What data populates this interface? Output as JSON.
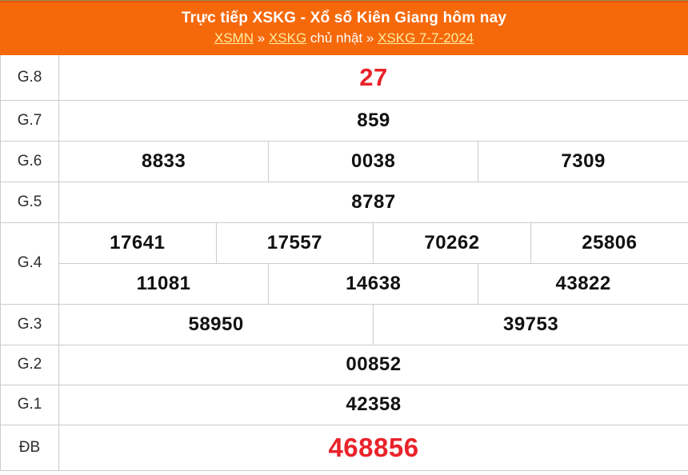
{
  "header": {
    "title": "Trực tiếp XSKG - Xổ số Kiên Giang hôm nay",
    "breadcrumb": {
      "link1": "XSMN",
      "sep1": "»",
      "link2": "XSKG",
      "text1": "chủ nhật",
      "sep2": "»",
      "link3": "XSKG 7-7-2024"
    }
  },
  "table": {
    "rows": [
      {
        "label": "G.8",
        "cells": [
          "27"
        ]
      },
      {
        "label": "G.7",
        "cells": [
          "859"
        ]
      },
      {
        "label": "G.6",
        "cells": [
          "8833",
          "0038",
          "7309"
        ]
      },
      {
        "label": "G.5",
        "cells": [
          "8787"
        ]
      },
      {
        "label": "G.4",
        "cells": [
          "17641",
          "17557",
          "70262",
          "25806"
        ],
        "cells2": [
          "11081",
          "14638",
          "43822"
        ]
      },
      {
        "label": "G.3",
        "cells": [
          "58950",
          "39753"
        ]
      },
      {
        "label": "G.2",
        "cells": [
          "00852"
        ]
      },
      {
        "label": "G.1",
        "cells": [
          "42358"
        ]
      },
      {
        "label": "ĐB",
        "cells": [
          "468856"
        ]
      }
    ]
  },
  "colors": {
    "header_bg": "#f6690b",
    "header_top_edge": "#e25415",
    "header_text": "#ffffff",
    "link_yellow": "#ffeda0",
    "highlight_red": "#e9232b",
    "value_black": "#111111",
    "border_gray": "#cccccc",
    "label_gray": "#2d2d2d"
  }
}
